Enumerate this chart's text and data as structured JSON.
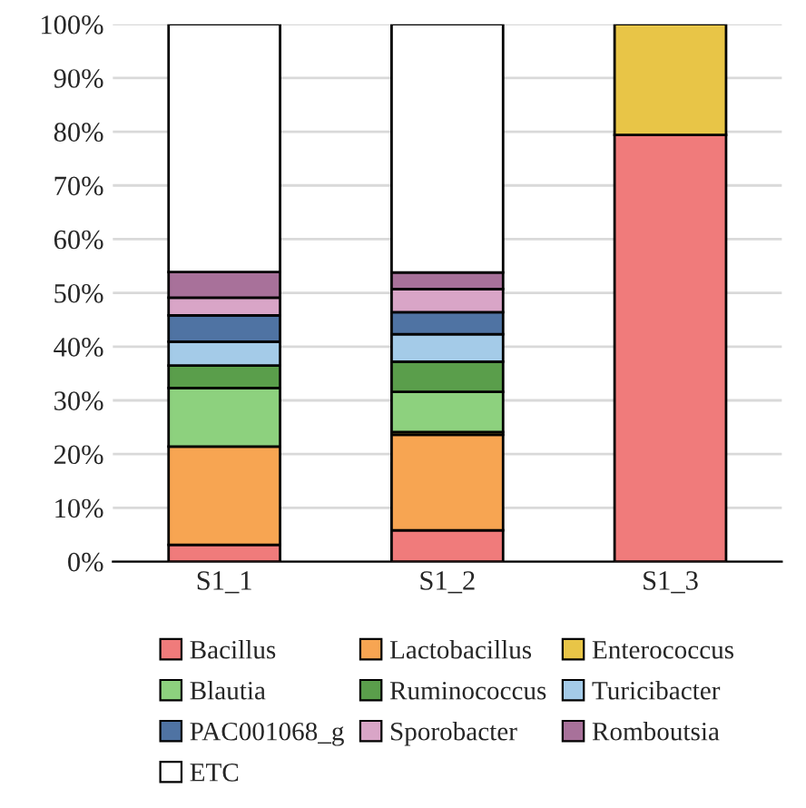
{
  "chart_data": {
    "type": "bar",
    "stacked": true,
    "categories": [
      "S1_1",
      "S1_2",
      "S1_3"
    ],
    "series": [
      {
        "name": "Bacillus",
        "color": "#f07b7b",
        "values": [
          3.1,
          5.8,
          79.4
        ]
      },
      {
        "name": "Lactobacillus",
        "color": "#f7a552",
        "values": [
          18.3,
          17.8,
          null
        ]
      },
      {
        "name": "Enterococcus",
        "color": "#e8c547",
        "values": [
          null,
          0.5,
          20.6
        ]
      },
      {
        "name": "Blautia",
        "color": "#8dd17e",
        "values": [
          10.9,
          7.5,
          null
        ]
      },
      {
        "name": "Ruminococcus",
        "color": "#5a9e4b",
        "values": [
          4.2,
          5.6,
          null
        ]
      },
      {
        "name": "Turicibacter",
        "color": "#a4cbe8",
        "values": [
          4.4,
          5.1,
          null
        ]
      },
      {
        "name": "PAC001068_g",
        "color": "#4f73a3",
        "values": [
          4.9,
          4.1,
          null
        ]
      },
      {
        "name": "Sporobacter",
        "color": "#d9a5c7",
        "values": [
          3.3,
          4.3,
          null
        ]
      },
      {
        "name": "Romboutsia",
        "color": "#a8719a",
        "values": [
          4.8,
          3.1,
          null
        ]
      },
      {
        "name": "ETC",
        "color": "#ffffff",
        "values": [
          46.1,
          46.2,
          null
        ]
      }
    ],
    "ylim": [
      0,
      100
    ],
    "yticks": [
      {
        "value": 0,
        "label": "0%"
      },
      {
        "value": 10,
        "label": "10%"
      },
      {
        "value": 20,
        "label": "20%"
      },
      {
        "value": 30,
        "label": "30%"
      },
      {
        "value": 40,
        "label": "40%"
      },
      {
        "value": 50,
        "label": "50%"
      },
      {
        "value": 60,
        "label": "60%"
      },
      {
        "value": 70,
        "label": "70%"
      },
      {
        "value": 80,
        "label": "80%"
      },
      {
        "value": 90,
        "label": "90%"
      },
      {
        "value": 100,
        "label": "100%"
      }
    ],
    "grid": "y",
    "legend": "bottom"
  }
}
